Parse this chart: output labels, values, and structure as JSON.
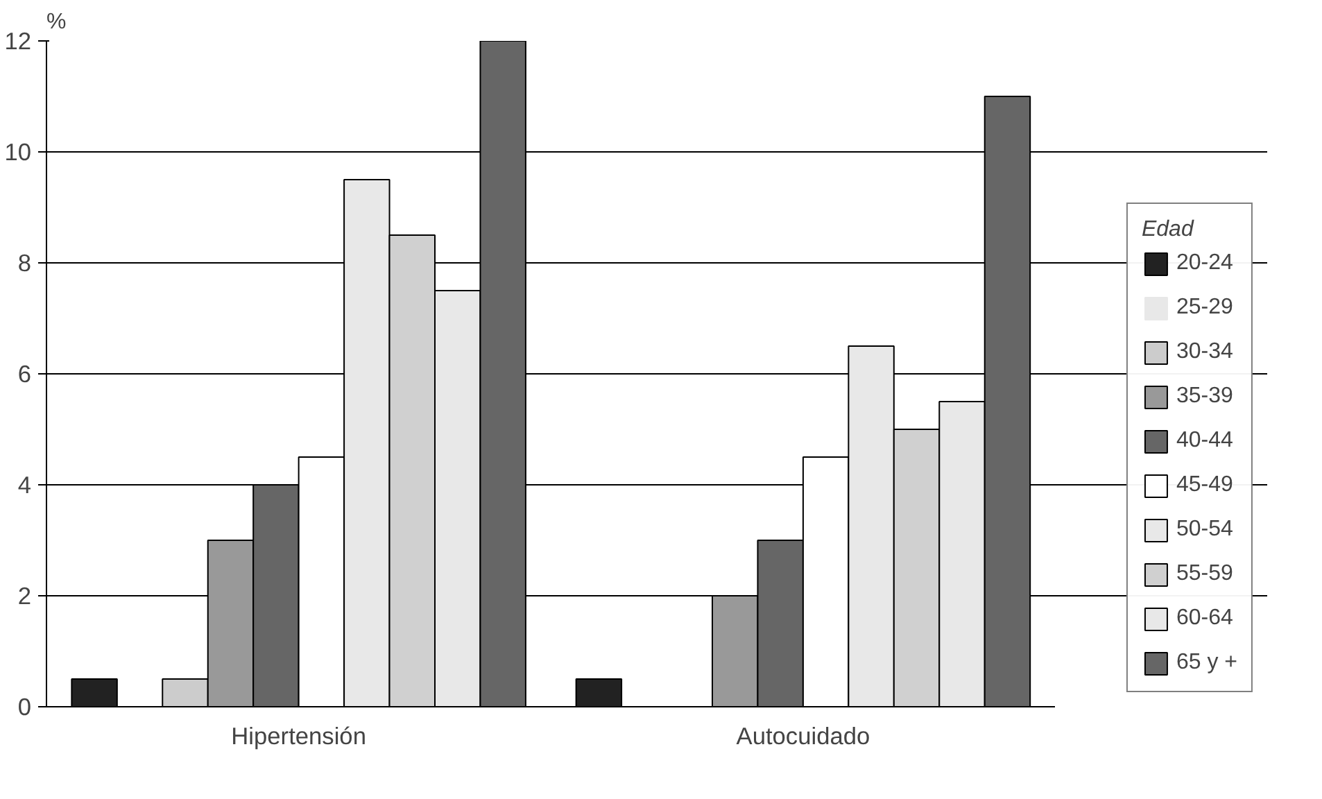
{
  "chart_data": {
    "type": "bar",
    "ylabel": "%",
    "legend_title": "Edad",
    "categories": [
      "Hipertensión",
      "Autocuidado"
    ],
    "series": [
      {
        "name": "20-24",
        "color": "#222222",
        "values": [
          0.5,
          0.5
        ]
      },
      {
        "name": "25-29",
        "color": "#e8e8e8",
        "values": [
          0,
          0
        ]
      },
      {
        "name": "30-34",
        "color": "#cccccc",
        "values": [
          0.5,
          0
        ]
      },
      {
        "name": "35-39",
        "color": "#999999",
        "values": [
          3,
          2
        ]
      },
      {
        "name": "40-44",
        "color": "#666666",
        "values": [
          4,
          3
        ]
      },
      {
        "name": "45-49",
        "color": "#ffffff",
        "values": [
          4.5,
          4.5
        ]
      },
      {
        "name": "50-54",
        "color": "#e8e8e8",
        "values": [
          9.5,
          6.5
        ]
      },
      {
        "name": "55-59",
        "color": "#d0d0d0",
        "values": [
          8.5,
          5
        ]
      },
      {
        "name": "60-64",
        "color": "#e8e8e8",
        "values": [
          7.5,
          5.5
        ]
      },
      {
        "name": "65 y +",
        "color": "#666666",
        "values": [
          12,
          11
        ]
      }
    ],
    "ylim": [
      0,
      12
    ],
    "yticks": [
      0,
      2,
      4,
      6,
      8,
      10,
      12
    ],
    "grid": "y",
    "legend": "right"
  }
}
